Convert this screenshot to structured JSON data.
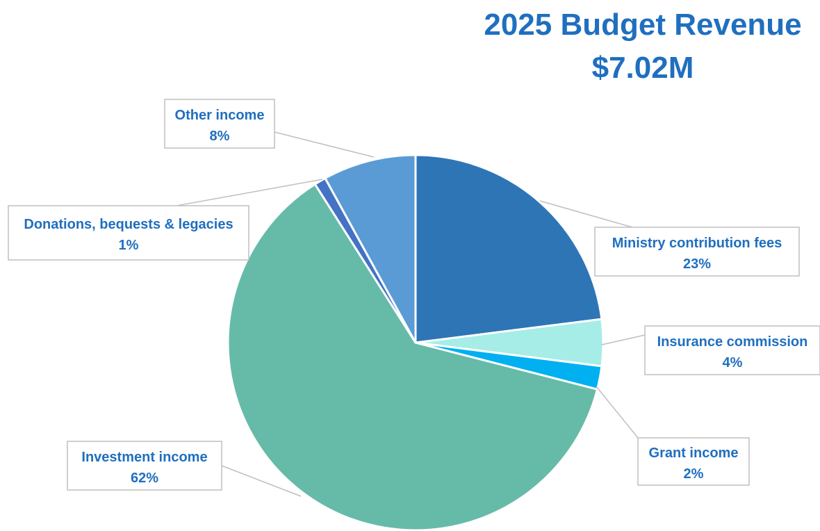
{
  "chart_data": {
    "type": "pie",
    "title": "2025 Budget Revenue",
    "subtitle": "$7.02M",
    "slices": [
      {
        "label": "Ministry contribution fees",
        "value": 23,
        "value_label": "23%",
        "color": "#2e75b6"
      },
      {
        "label": "Insurance commission",
        "value": 4,
        "value_label": "4%",
        "color": "#a6ede8"
      },
      {
        "label": "Grant income",
        "value": 2,
        "value_label": "2%",
        "color": "#00b0f0"
      },
      {
        "label": "Investment income",
        "value": 62,
        "value_label": "62%",
        "color": "#66bba8"
      },
      {
        "label": "Donations, bequests & legacies",
        "value": 1,
        "value_label": "1%",
        "color": "#4472c4"
      },
      {
        "label": "Other income",
        "value": 8,
        "value_label": "8%",
        "color": "#5b9bd5"
      }
    ],
    "legend": "none",
    "data_labels": "callout boxes"
  }
}
